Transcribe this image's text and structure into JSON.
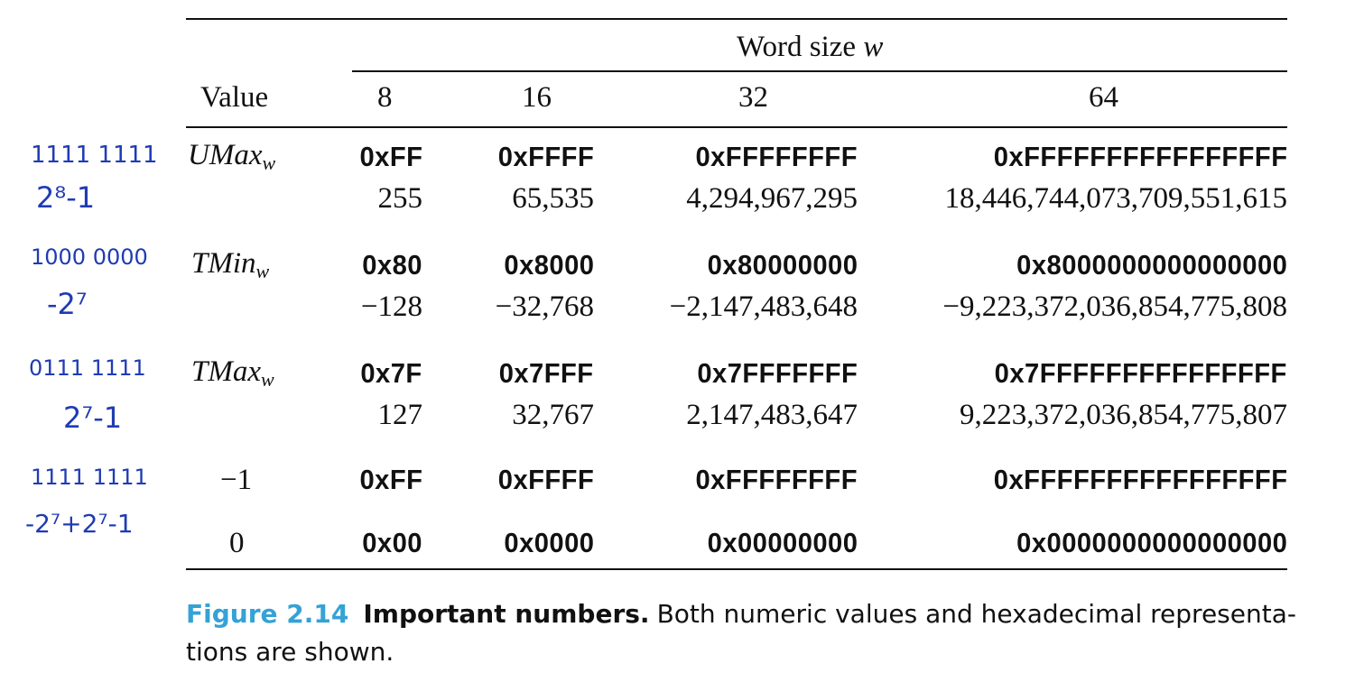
{
  "table": {
    "word_size_label": "Word size ",
    "word_size_var": "w",
    "value_header": "Value",
    "columns": [
      "8",
      "16",
      "32",
      "64"
    ],
    "rows": [
      {
        "label": "UMax",
        "sub": "w",
        "hex": [
          "0xFF",
          "0xFFFF",
          "0xFFFFFFFF",
          "0xFFFFFFFFFFFFFFFF"
        ],
        "dec": [
          "255",
          "65,535",
          "4,294,967,295",
          "18,446,744,073,709,551,615"
        ]
      },
      {
        "label": "TMin",
        "sub": "w",
        "hex": [
          "0x80",
          "0x8000",
          "0x80000000",
          "0x8000000000000000"
        ],
        "dec": [
          "−128",
          "−32,768",
          "−2,147,483,648",
          "−9,223,372,036,854,775,808"
        ]
      },
      {
        "label": "TMax",
        "sub": "w",
        "hex": [
          "0x7F",
          "0x7FFF",
          "0x7FFFFFFF",
          "0x7FFFFFFFFFFFFFFF"
        ],
        "dec": [
          "127",
          "32,767",
          "2,147,483,647",
          "9,223,372,036,854,775,807"
        ]
      },
      {
        "label": "−1",
        "hex": [
          "0xFF",
          "0xFFFF",
          "0xFFFFFFFF",
          "0xFFFFFFFFFFFFFFFF"
        ]
      },
      {
        "label": "0",
        "hex": [
          "0x00",
          "0x0000",
          "0x00000000",
          "0x0000000000000000"
        ]
      }
    ]
  },
  "caption": {
    "figure_number": "Figure 2.14",
    "title": "Important numbers.",
    "text": "Both numeric values and hexadecimal representa- tions are shown."
  },
  "annotations": {
    "ink_color": "#1f3bb3",
    "notes": [
      "1111 1111",
      "2⁸-1",
      "1000 0000",
      "-2⁷",
      "0111 1111",
      "2⁷-1",
      "1111 1111",
      "-2⁷+2⁷-1"
    ]
  }
}
